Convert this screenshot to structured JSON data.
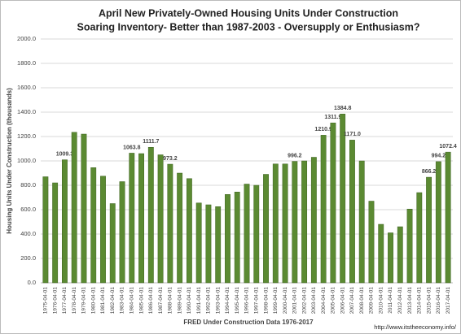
{
  "chart_data": {
    "type": "bar",
    "title": "April New Privately-Owned Housing Units Under Construction",
    "subtitle": "Soaring Inventory- Better than 1987-2003 - Oversupply or Enthusiasm?",
    "y_label": "Housing Units Under Construction (thousands)",
    "x_label": "FRED Under Construction Data 1976-2017",
    "source": "http://www.itstheeconomy.info/",
    "categories": [
      "1975-04-01",
      "1976-04-01",
      "1977-04-01",
      "1978-04-01",
      "1979-04-01",
      "1980-04-01",
      "1981-04-01",
      "1982-04-01",
      "1983-04-01",
      "1984-04-01",
      "1985-04-01",
      "1986-04-01",
      "1987-04-01",
      "1988-04-01",
      "1989-04-01",
      "1990-04-01",
      "1991-04-01",
      "1992-04-01",
      "1993-04-01",
      "1994-04-01",
      "1995-04-01",
      "1996-04-01",
      "1997-04-01",
      "1998-04-01",
      "1999-04-01",
      "2000-04-01",
      "2001-04-01",
      "2002-04-01",
      "2003-04-01",
      "2004-04-01",
      "2005-04-01",
      "2006-04-01",
      "2007-04-01",
      "2008-04-01",
      "2009-04-01",
      "2010-04-01",
      "2011-04-01",
      "2012-04-01",
      "2013-04-01",
      "2014-04-01",
      "2015-04-01",
      "2016-04-01",
      "2017-04-01"
    ],
    "values": [
      870,
      820,
      1009.3,
      1235,
      1220,
      945,
      875,
      650,
      830,
      1063.8,
      1060,
      1111.7,
      1050,
      973.2,
      900,
      855,
      655,
      640,
      625,
      725,
      745,
      810,
      800,
      890,
      975,
      975,
      996.2,
      1000,
      1030,
      1210.9,
      1311.9,
      1384.8,
      1171.0,
      1000,
      670,
      480,
      410,
      460,
      605,
      740,
      866.2,
      994.2,
      1072.4
    ],
    "value_labels": [
      null,
      null,
      "1009.3",
      null,
      null,
      null,
      null,
      null,
      null,
      "1063.8",
      null,
      "1111.7",
      null,
      "973.2",
      null,
      null,
      null,
      null,
      null,
      null,
      null,
      null,
      null,
      null,
      null,
      null,
      "996.2",
      null,
      null,
      "1210.9",
      "1311.9",
      "1384.8",
      "1171.0",
      null,
      null,
      null,
      null,
      null,
      null,
      null,
      "866.2",
      "994.2",
      "1072.4"
    ],
    "color": "#5b8a32",
    "ylim": [
      0,
      2000
    ],
    "yticks": [
      {
        "value": 0,
        "label": "0.0"
      },
      {
        "value": 200,
        "label": "200.0"
      },
      {
        "value": 400,
        "label": "400.0"
      },
      {
        "value": 600,
        "label": "600.0"
      },
      {
        "value": 800,
        "label": "800.0"
      },
      {
        "value": 1000,
        "label": "1000.0"
      },
      {
        "value": 1200,
        "label": "1200.0"
      },
      {
        "value": 1400,
        "label": "1400.0"
      },
      {
        "value": 1600,
        "label": "1600.0"
      },
      {
        "value": 1800,
        "label": "1800.0"
      },
      {
        "value": 2000,
        "label": "2000.0"
      }
    ],
    "grid": true
  }
}
